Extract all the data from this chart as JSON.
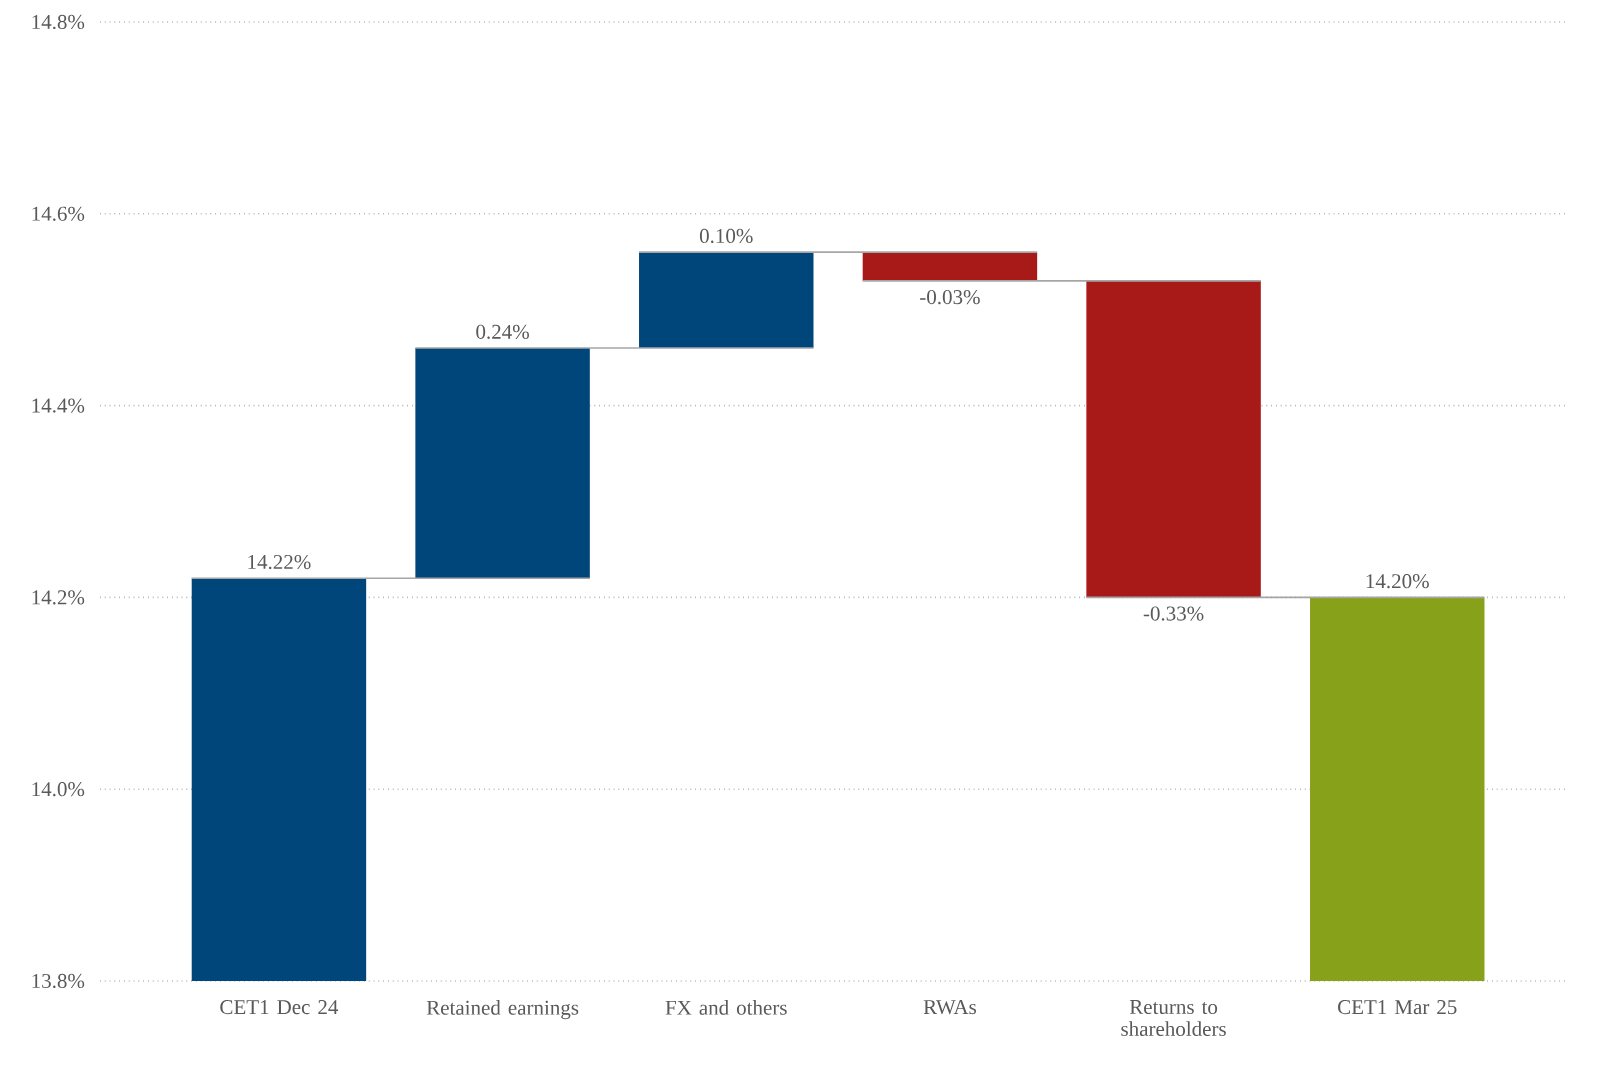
{
  "chart_data": {
    "type": "bar",
    "categories": [
      "CET1 Dec 24",
      "Retained earnings",
      "FX and others",
      "RWAs",
      "Returns to shareholders",
      "CET1 Mar 25"
    ],
    "base": [
      13.8,
      14.22,
      14.46,
      14.56,
      14.53,
      13.8
    ],
    "values": [
      0.42,
      0.24,
      0.1,
      -0.03,
      -0.33,
      0.4
    ],
    "colors": [
      "#00467a",
      "#00467a",
      "#00467a",
      "#a81a18",
      "#a81a18",
      "#87a21a"
    ],
    "value_labels": [
      "14.22%",
      "0.24%",
      "0.10%",
      "-0.03%",
      "-0.33%",
      "14.20%"
    ],
    "ylim": [
      13.8,
      14.8
    ],
    "yticks": [
      {
        "value": 13.8,
        "label": "13.8%"
      },
      {
        "value": 14.0,
        "label": "14.0%"
      },
      {
        "value": 14.2,
        "label": "14.2%"
      },
      {
        "value": 14.4,
        "label": "14.4%"
      },
      {
        "value": 14.6,
        "label": "14.6%"
      },
      {
        "value": 14.8,
        "label": "14.8%"
      }
    ],
    "grid": "y"
  }
}
